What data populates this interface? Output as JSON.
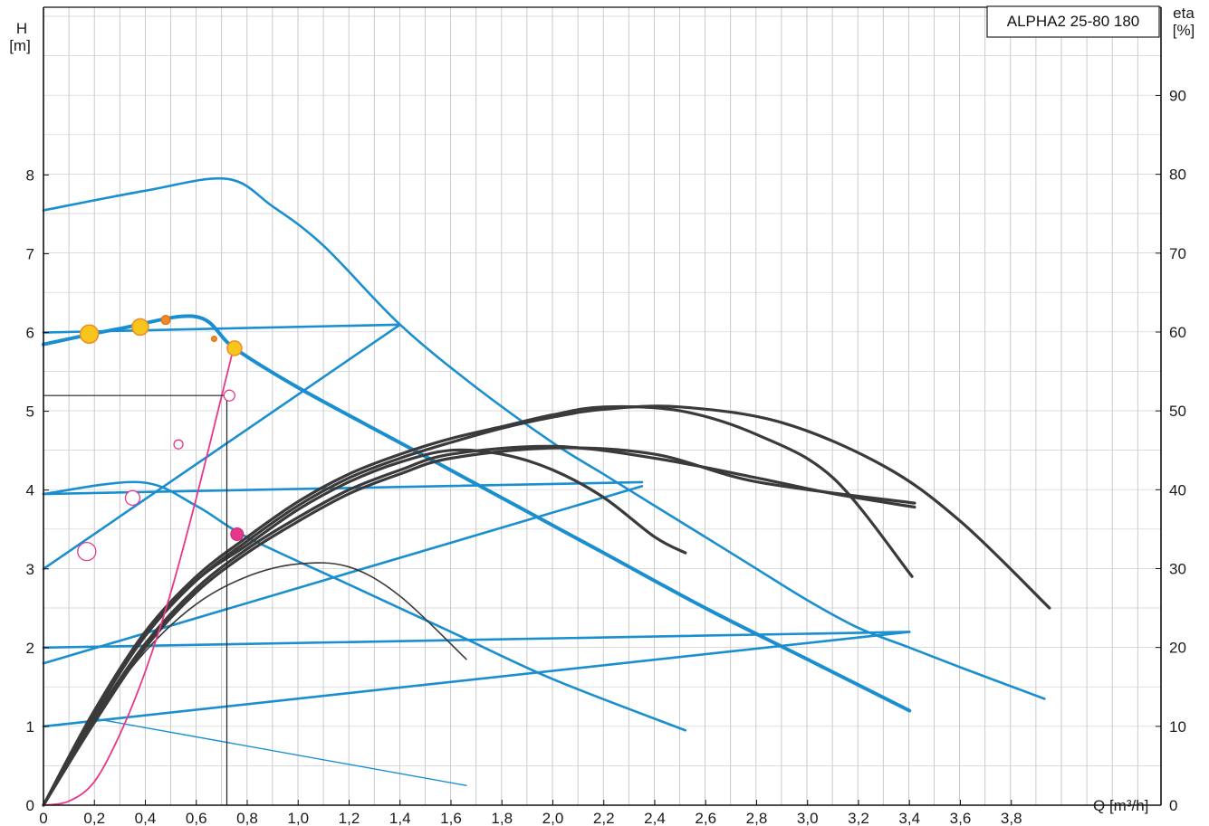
{
  "chart_data": {
    "type": "line",
    "title": "ALPHA2 25-80 180",
    "x_axis": {
      "label": "Q [m³/h]",
      "range": [
        0,
        4.0
      ],
      "tick_labels": [
        "0",
        "0,2",
        "0,4",
        "0,6",
        "0,8",
        "1,0",
        "1,2",
        "1,4",
        "1,6",
        "1,8",
        "2,0",
        "2,2",
        "2,4",
        "2,6",
        "2,8",
        "3,0",
        "3,2",
        "3,4",
        "3,6",
        "3,8"
      ]
    },
    "y_axis_left": {
      "label_top": "H",
      "label_unit": "[m]",
      "range": [
        0,
        8.9
      ],
      "tick_labels": [
        "0",
        "1",
        "2",
        "3",
        "4",
        "5",
        "6",
        "7",
        "8"
      ]
    },
    "y_axis_right": {
      "label_top": "eta",
      "label_unit": "[%]",
      "range": [
        0,
        100
      ],
      "tick_labels": [
        "0",
        "10",
        "20",
        "30",
        "40",
        "50",
        "60",
        "70",
        "80",
        "90"
      ]
    },
    "grid": true,
    "colors": {
      "pump_curves": "#1a8fd0",
      "efficiency_curves": "#3a3a3a",
      "system_curve": "#e8378a",
      "markers_fill": "#f7c51d",
      "markers_edge": "#f08a24",
      "operating_line": "#222222"
    },
    "series": [
      {
        "kind": "head",
        "x": [
          0,
          0.4,
          0.72,
          0.9,
          1.1,
          1.4,
          1.7,
          2.0,
          2.2,
          2.4,
          2.6,
          2.8,
          3.0,
          3.2,
          3.4,
          3.6,
          3.93
        ],
        "y": [
          7.55,
          7.8,
          7.95,
          7.6,
          7.1,
          6.1,
          5.3,
          4.6,
          4.2,
          3.8,
          3.4,
          3.0,
          2.6,
          2.25,
          2.0,
          1.75,
          1.35
        ]
      },
      {
        "kind": "head",
        "x": [
          0,
          0.3,
          0.6,
          0.75,
          1.0,
          1.4,
          1.8,
          2.2,
          2.6,
          3.0,
          3.4
        ],
        "y": [
          5.85,
          6.05,
          6.2,
          5.8,
          5.3,
          4.6,
          3.9,
          3.2,
          2.5,
          1.85,
          1.2
        ]
      },
      {
        "kind": "head",
        "x": [
          0,
          0.38,
          0.6,
          0.8,
          1.2,
          1.6,
          2.0,
          2.52
        ],
        "y": [
          3.95,
          4.1,
          3.8,
          3.4,
          2.8,
          2.2,
          1.6,
          0.95
        ]
      },
      {
        "kind": "head",
        "x": [
          0,
          1.4
        ],
        "y": [
          6.0,
          6.1
        ]
      },
      {
        "kind": "head",
        "x": [
          0,
          2.35
        ],
        "y": [
          3.95,
          4.1
        ]
      },
      {
        "kind": "head",
        "x": [
          0,
          3.4
        ],
        "y": [
          2.0,
          2.2
        ]
      },
      {
        "kind": "head",
        "x": [
          0,
          1.4
        ],
        "y": [
          3.0,
          6.1
        ]
      },
      {
        "kind": "head",
        "x": [
          0,
          2.35
        ],
        "y": [
          1.8,
          4.05
        ]
      },
      {
        "kind": "head",
        "x": [
          0,
          3.4
        ],
        "y": [
          1.0,
          2.2
        ]
      },
      {
        "kind": "head",
        "x": [
          0.2,
          1.66
        ],
        "y": [
          1.1,
          0.25
        ]
      },
      {
        "kind": "efficiency",
        "x": [
          0,
          0.2,
          0.4,
          0.6,
          0.8,
          1.0,
          1.2,
          1.4,
          1.6,
          1.8,
          2.0,
          2.2,
          2.5,
          2.8,
          3.1,
          3.41
        ],
        "y": [
          0,
          12,
          22,
          29,
          34,
          38.5,
          42,
          44.5,
          46.5,
          48,
          49.5,
          50.5,
          50,
          47,
          41.5,
          29
        ]
      },
      {
        "kind": "efficiency",
        "x": [
          0,
          0.2,
          0.4,
          0.6,
          0.8,
          1.0,
          1.2,
          1.4,
          1.6,
          1.8,
          2.0,
          2.2,
          2.5,
          2.9,
          3.3,
          3.6,
          3.95
        ],
        "y": [
          0,
          11.5,
          21.5,
          28.5,
          33.5,
          38,
          41.5,
          44,
          46,
          47.8,
          49.2,
          50.2,
          50.5,
          48.5,
          43,
          36,
          25
        ]
      },
      {
        "kind": "efficiency",
        "x": [
          0,
          0.2,
          0.4,
          0.6,
          0.8,
          1.0,
          1.2,
          1.4,
          1.6,
          1.8,
          2.0,
          2.2,
          2.4,
          2.52
        ],
        "y": [
          0,
          12,
          21.5,
          28.5,
          33,
          37.5,
          41,
          43.5,
          45,
          44.5,
          42.5,
          39,
          34,
          32
        ]
      },
      {
        "kind": "efficiency",
        "x": [
          0,
          0.2,
          0.4,
          0.6,
          0.8,
          1.0,
          1.2,
          1.4,
          1.6,
          2.0,
          2.4,
          2.8,
          3.1,
          3.42
        ],
        "y": [
          0,
          11,
          20.5,
          27.5,
          32.5,
          36.5,
          40,
          42.5,
          44.5,
          45.5,
          44,
          41.5,
          39.5,
          37.8
        ]
      },
      {
        "kind": "efficiency",
        "x": [
          0,
          0.2,
          0.4,
          0.6,
          0.8,
          1.0,
          1.2,
          1.4,
          1.6,
          2.0,
          2.4,
          2.8,
          3.42
        ],
        "y": [
          0,
          10.5,
          20,
          27,
          32,
          36,
          39.5,
          42,
          44,
          45.3,
          44.5,
          41,
          38.3
        ]
      },
      {
        "kind": "efficiency",
        "x": [
          0,
          0.2,
          0.4,
          0.6,
          0.8,
          1.0,
          1.2,
          1.4,
          1.66
        ],
        "y": [
          0,
          11,
          19.5,
          25.5,
          29,
          30.6,
          30.2,
          26.5,
          18.5
        ]
      },
      {
        "kind": "system",
        "x": [
          0,
          0.1,
          0.2,
          0.3,
          0.4,
          0.5,
          0.6,
          0.7,
          0.75
        ],
        "y": [
          0,
          0.05,
          0.3,
          0.9,
          1.7,
          2.7,
          3.9,
          5.2,
          5.85
        ]
      }
    ],
    "operating_point": {
      "Q": 0.72,
      "H": 5.2
    },
    "markers": [
      {
        "x": 0.18,
        "y": 5.98,
        "r": 10,
        "style": "filled-yellow"
      },
      {
        "x": 0.38,
        "y": 6.07,
        "r": 9,
        "style": "filled-yellow"
      },
      {
        "x": 0.48,
        "y": 6.16,
        "r": 5,
        "style": "filled-orange"
      },
      {
        "x": 0.67,
        "y": 5.92,
        "r": 3,
        "style": "filled-orange"
      },
      {
        "x": 0.75,
        "y": 5.8,
        "r": 8,
        "style": "filled-yellow"
      },
      {
        "x": 0.73,
        "y": 5.2,
        "r": 6,
        "style": "open-pink"
      },
      {
        "x": 0.53,
        "y": 4.58,
        "r": 5,
        "style": "open-pink"
      },
      {
        "x": 0.35,
        "y": 3.9,
        "r": 8,
        "style": "open-pink"
      },
      {
        "x": 0.17,
        "y": 3.22,
        "r": 10,
        "style": "open-pink"
      },
      {
        "x": 0.76,
        "y": 3.44,
        "r": 7,
        "style": "filled-pink"
      }
    ]
  }
}
